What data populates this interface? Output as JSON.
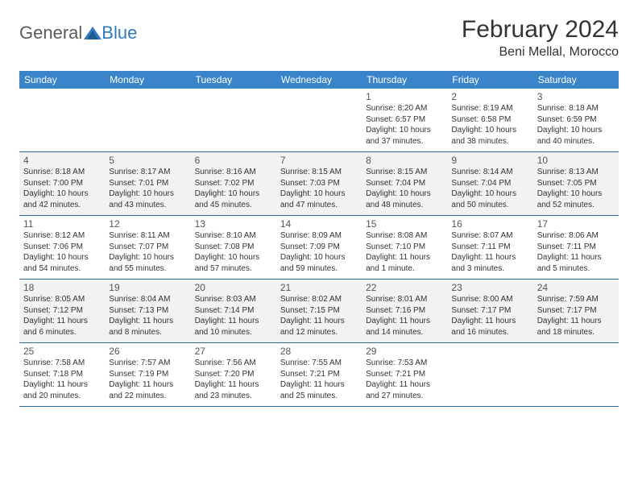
{
  "logo": {
    "general": "General",
    "blue": "Blue"
  },
  "title": "February 2024",
  "subtitle": "Beni Mellal, Morocco",
  "colors": {
    "header_bg": "#3a85c9",
    "header_text": "#ffffff",
    "row_border": "#2f6aa3",
    "alt_row_bg": "#f2f2f2",
    "text": "#333333",
    "daynum": "#555555",
    "logo_gray": "#5a5a5a",
    "logo_blue": "#2f7bbf",
    "page_bg": "#ffffff"
  },
  "day_labels": [
    "Sunday",
    "Monday",
    "Tuesday",
    "Wednesday",
    "Thursday",
    "Friday",
    "Saturday"
  ],
  "weeks": [
    {
      "alt": false,
      "cells": [
        null,
        null,
        null,
        null,
        {
          "n": "1",
          "sr": "Sunrise: 8:20 AM",
          "ss": "Sunset: 6:57 PM",
          "d1": "Daylight: 10 hours",
          "d2": "and 37 minutes."
        },
        {
          "n": "2",
          "sr": "Sunrise: 8:19 AM",
          "ss": "Sunset: 6:58 PM",
          "d1": "Daylight: 10 hours",
          "d2": "and 38 minutes."
        },
        {
          "n": "3",
          "sr": "Sunrise: 8:18 AM",
          "ss": "Sunset: 6:59 PM",
          "d1": "Daylight: 10 hours",
          "d2": "and 40 minutes."
        }
      ]
    },
    {
      "alt": true,
      "cells": [
        {
          "n": "4",
          "sr": "Sunrise: 8:18 AM",
          "ss": "Sunset: 7:00 PM",
          "d1": "Daylight: 10 hours",
          "d2": "and 42 minutes."
        },
        {
          "n": "5",
          "sr": "Sunrise: 8:17 AM",
          "ss": "Sunset: 7:01 PM",
          "d1": "Daylight: 10 hours",
          "d2": "and 43 minutes."
        },
        {
          "n": "6",
          "sr": "Sunrise: 8:16 AM",
          "ss": "Sunset: 7:02 PM",
          "d1": "Daylight: 10 hours",
          "d2": "and 45 minutes."
        },
        {
          "n": "7",
          "sr": "Sunrise: 8:15 AM",
          "ss": "Sunset: 7:03 PM",
          "d1": "Daylight: 10 hours",
          "d2": "and 47 minutes."
        },
        {
          "n": "8",
          "sr": "Sunrise: 8:15 AM",
          "ss": "Sunset: 7:04 PM",
          "d1": "Daylight: 10 hours",
          "d2": "and 48 minutes."
        },
        {
          "n": "9",
          "sr": "Sunrise: 8:14 AM",
          "ss": "Sunset: 7:04 PM",
          "d1": "Daylight: 10 hours",
          "d2": "and 50 minutes."
        },
        {
          "n": "10",
          "sr": "Sunrise: 8:13 AM",
          "ss": "Sunset: 7:05 PM",
          "d1": "Daylight: 10 hours",
          "d2": "and 52 minutes."
        }
      ]
    },
    {
      "alt": false,
      "cells": [
        {
          "n": "11",
          "sr": "Sunrise: 8:12 AM",
          "ss": "Sunset: 7:06 PM",
          "d1": "Daylight: 10 hours",
          "d2": "and 54 minutes."
        },
        {
          "n": "12",
          "sr": "Sunrise: 8:11 AM",
          "ss": "Sunset: 7:07 PM",
          "d1": "Daylight: 10 hours",
          "d2": "and 55 minutes."
        },
        {
          "n": "13",
          "sr": "Sunrise: 8:10 AM",
          "ss": "Sunset: 7:08 PM",
          "d1": "Daylight: 10 hours",
          "d2": "and 57 minutes."
        },
        {
          "n": "14",
          "sr": "Sunrise: 8:09 AM",
          "ss": "Sunset: 7:09 PM",
          "d1": "Daylight: 10 hours",
          "d2": "and 59 minutes."
        },
        {
          "n": "15",
          "sr": "Sunrise: 8:08 AM",
          "ss": "Sunset: 7:10 PM",
          "d1": "Daylight: 11 hours",
          "d2": "and 1 minute."
        },
        {
          "n": "16",
          "sr": "Sunrise: 8:07 AM",
          "ss": "Sunset: 7:11 PM",
          "d1": "Daylight: 11 hours",
          "d2": "and 3 minutes."
        },
        {
          "n": "17",
          "sr": "Sunrise: 8:06 AM",
          "ss": "Sunset: 7:11 PM",
          "d1": "Daylight: 11 hours",
          "d2": "and 5 minutes."
        }
      ]
    },
    {
      "alt": true,
      "cells": [
        {
          "n": "18",
          "sr": "Sunrise: 8:05 AM",
          "ss": "Sunset: 7:12 PM",
          "d1": "Daylight: 11 hours",
          "d2": "and 6 minutes."
        },
        {
          "n": "19",
          "sr": "Sunrise: 8:04 AM",
          "ss": "Sunset: 7:13 PM",
          "d1": "Daylight: 11 hours",
          "d2": "and 8 minutes."
        },
        {
          "n": "20",
          "sr": "Sunrise: 8:03 AM",
          "ss": "Sunset: 7:14 PM",
          "d1": "Daylight: 11 hours",
          "d2": "and 10 minutes."
        },
        {
          "n": "21",
          "sr": "Sunrise: 8:02 AM",
          "ss": "Sunset: 7:15 PM",
          "d1": "Daylight: 11 hours",
          "d2": "and 12 minutes."
        },
        {
          "n": "22",
          "sr": "Sunrise: 8:01 AM",
          "ss": "Sunset: 7:16 PM",
          "d1": "Daylight: 11 hours",
          "d2": "and 14 minutes."
        },
        {
          "n": "23",
          "sr": "Sunrise: 8:00 AM",
          "ss": "Sunset: 7:17 PM",
          "d1": "Daylight: 11 hours",
          "d2": "and 16 minutes."
        },
        {
          "n": "24",
          "sr": "Sunrise: 7:59 AM",
          "ss": "Sunset: 7:17 PM",
          "d1": "Daylight: 11 hours",
          "d2": "and 18 minutes."
        }
      ]
    },
    {
      "alt": false,
      "cells": [
        {
          "n": "25",
          "sr": "Sunrise: 7:58 AM",
          "ss": "Sunset: 7:18 PM",
          "d1": "Daylight: 11 hours",
          "d2": "and 20 minutes."
        },
        {
          "n": "26",
          "sr": "Sunrise: 7:57 AM",
          "ss": "Sunset: 7:19 PM",
          "d1": "Daylight: 11 hours",
          "d2": "and 22 minutes."
        },
        {
          "n": "27",
          "sr": "Sunrise: 7:56 AM",
          "ss": "Sunset: 7:20 PM",
          "d1": "Daylight: 11 hours",
          "d2": "and 23 minutes."
        },
        {
          "n": "28",
          "sr": "Sunrise: 7:55 AM",
          "ss": "Sunset: 7:21 PM",
          "d1": "Daylight: 11 hours",
          "d2": "and 25 minutes."
        },
        {
          "n": "29",
          "sr": "Sunrise: 7:53 AM",
          "ss": "Sunset: 7:21 PM",
          "d1": "Daylight: 11 hours",
          "d2": "and 27 minutes."
        },
        null,
        null
      ]
    }
  ]
}
